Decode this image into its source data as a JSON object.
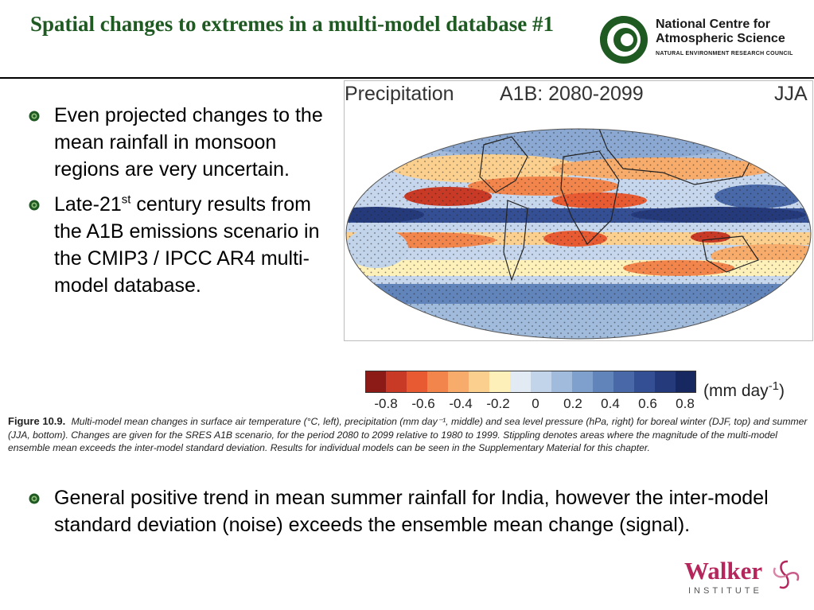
{
  "slide": {
    "title": "Spatial changes to extremes in a multi-model database #1"
  },
  "ncas_logo": {
    "line1": "National Centre for",
    "line2": "Atmospheric Science",
    "line3": "NATURAL ENVIRONMENT RESEARCH COUNCIL",
    "color": "#1f5a22"
  },
  "bullets": [
    {
      "text": "Even projected changes to the mean rainfall in monsoon regions are very uncertain."
    },
    {
      "pre": "Late-21",
      "sup": "st",
      "post": " century results from the A1B emissions scenario in the CMIP3 / IPCC AR4 multi-model database."
    }
  ],
  "figure": {
    "variable": "Precipitation",
    "scenario": "A1B: 2080-2099",
    "season": "JJA",
    "colorbar_ticks": [
      "-0.8",
      "-0.6",
      "-0.4",
      "-0.2",
      "0",
      "0.2",
      "0.4",
      "0.6",
      "0.8"
    ],
    "colorbar_colors": [
      "#8c1b17",
      "#c83a25",
      "#e85a32",
      "#f2854b",
      "#f7ac6c",
      "#fbd08f",
      "#fdf0b8",
      "#e2eaf4",
      "#c2d4ea",
      "#a0bbdc",
      "#7f9fcc",
      "#6184bb",
      "#4868a8",
      "#344f93",
      "#243a7a",
      "#17275f"
    ],
    "unit_pre": "(mm day",
    "unit_sup": "-1",
    "unit_post": ")",
    "caption_label": "Figure 10.9.",
    "caption_text": "Multi-model mean changes in surface air temperature (°C, left), precipitation (mm day⁻¹, middle) and sea level pressure (hPa, right) for boreal winter (DJF, top) and summer (JJA, bottom). Changes are given for the SRES A1B scenario, for the period 2080 to 2099 relative to 1980 to 1999. Stippling denotes areas where the magnitude of the multi-model ensemble mean exceeds the inter-model standard deviation. Results for individual models can be seen in the Supplementary Material for this chapter."
  },
  "bottom_bullet": {
    "text": "General positive trend in mean summer rainfall for India, however the inter-model standard deviation (noise) exceeds the ensemble mean change (signal)."
  },
  "walker_logo": {
    "name": "Walker",
    "sub": "INSTITUTE",
    "color": "#b5265c"
  }
}
